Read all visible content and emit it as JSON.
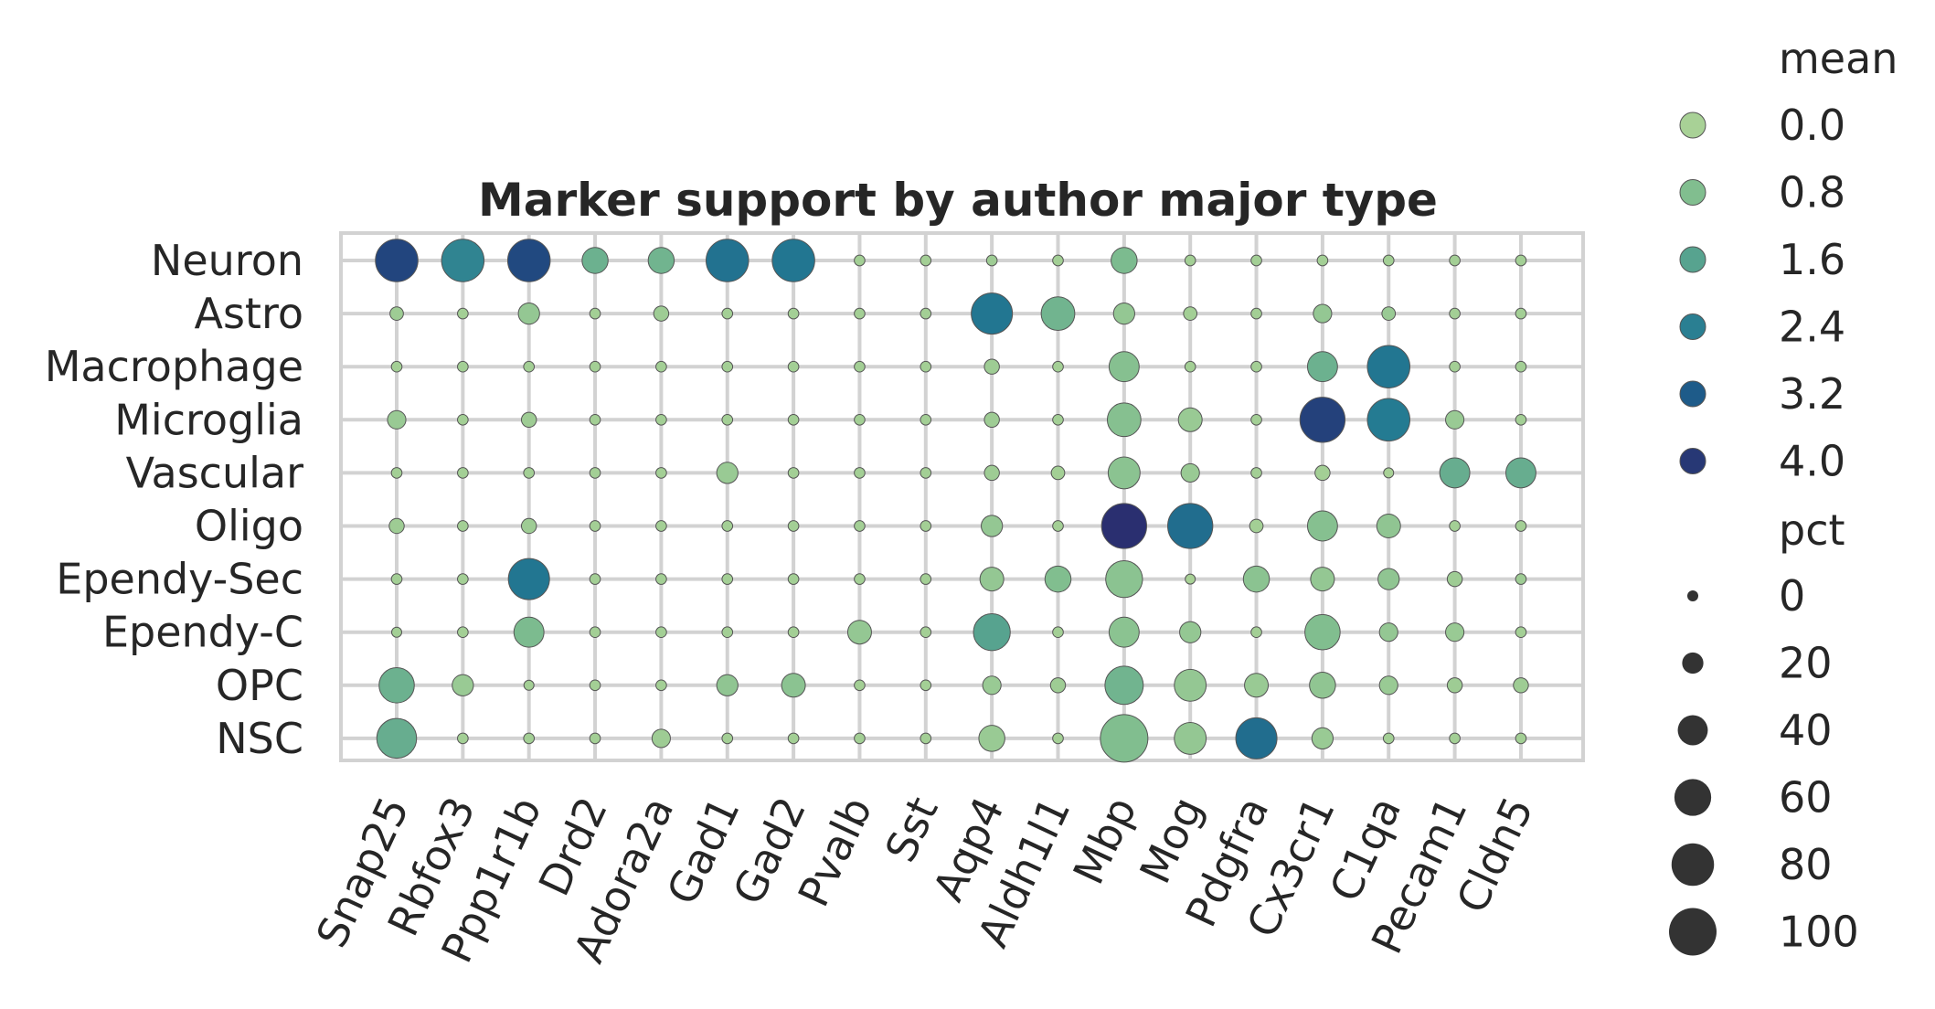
{
  "chart_data": {
    "type": "dotplot",
    "title": "Marker support by author major type",
    "xlabel": "",
    "ylabel": "",
    "rows": [
      "Neuron",
      "Astro",
      "Macrophage",
      "Microglia",
      "Vascular",
      "Oligo",
      "Ependy-Sec",
      "Ependy-C",
      "OPC",
      "NSC"
    ],
    "columns": [
      "Snap25",
      "Rbfox3",
      "Ppp1r1b",
      "Drd2",
      "Adora2a",
      "Gad1",
      "Gad2",
      "Pvalb",
      "Sst",
      "Aqp4",
      "Aldh1l1",
      "Mbp",
      "Mog",
      "Pdgfra",
      "Cx3cr1",
      "C1qa",
      "Pecam1",
      "Cldn5"
    ],
    "mean": [
      [
        3.7,
        2.3,
        3.6,
        1.2,
        1.1,
        2.7,
        2.6,
        0.1,
        0.1,
        0.2,
        0.1,
        0.9,
        0.1,
        0.1,
        0.1,
        0.1,
        0.1,
        0.1
      ],
      [
        0.2,
        0.1,
        0.4,
        0.1,
        0.2,
        0.1,
        0.1,
        0.1,
        0.1,
        2.6,
        1.1,
        0.4,
        0.1,
        0.1,
        0.4,
        0.3,
        0.1,
        0.1
      ],
      [
        0.1,
        0.1,
        0.1,
        0.1,
        0.1,
        0.1,
        0.1,
        0.1,
        0.1,
        0.2,
        0.1,
        0.7,
        0.1,
        0.1,
        1.2,
        2.6,
        0.1,
        0.1
      ],
      [
        0.3,
        0.1,
        0.2,
        0.1,
        0.1,
        0.1,
        0.1,
        0.1,
        0.1,
        0.2,
        0.1,
        0.7,
        0.3,
        0.1,
        3.8,
        2.5,
        0.3,
        0.1
      ],
      [
        0.1,
        0.1,
        0.1,
        0.1,
        0.1,
        0.3,
        0.1,
        0.1,
        0.1,
        0.2,
        0.1,
        0.6,
        0.3,
        0.1,
        0.1,
        0.0,
        1.3,
        1.3
      ],
      [
        0.2,
        0.1,
        0.2,
        0.1,
        0.1,
        0.1,
        0.1,
        0.1,
        0.1,
        0.4,
        0.1,
        4.2,
        2.8,
        0.1,
        0.7,
        0.5,
        0.1,
        0.1
      ],
      [
        0.1,
        0.1,
        2.6,
        0.1,
        0.1,
        0.1,
        0.1,
        0.1,
        0.1,
        0.4,
        0.8,
        0.6,
        0.0,
        0.6,
        0.4,
        0.5,
        0.2,
        0.2
      ],
      [
        0.1,
        0.1,
        0.9,
        0.1,
        0.1,
        0.1,
        0.1,
        0.4,
        0.1,
        1.6,
        0.1,
        0.6,
        0.4,
        0.1,
        0.8,
        0.4,
        0.3,
        0.1
      ],
      [
        1.2,
        0.3,
        0.1,
        0.1,
        0.1,
        0.5,
        0.6,
        0.1,
        0.1,
        0.3,
        0.2,
        1.1,
        0.4,
        0.3,
        0.5,
        0.3,
        0.2,
        0.2
      ],
      [
        1.3,
        0.1,
        0.1,
        0.1,
        0.2,
        0.1,
        0.1,
        0.1,
        0.1,
        0.3,
        0.1,
        0.8,
        0.4,
        2.8,
        0.3,
        0.1,
        0.1,
        0.1
      ]
    ],
    "pct": [
      [
        80,
        80,
        80,
        30,
        30,
        80,
        80,
        5,
        5,
        5,
        5,
        30,
        5,
        5,
        5,
        5,
        5,
        5
      ],
      [
        8,
        5,
        20,
        5,
        10,
        5,
        5,
        5,
        5,
        75,
        50,
        20,
        8,
        5,
        15,
        8,
        5,
        5
      ],
      [
        5,
        5,
        5,
        5,
        5,
        5,
        5,
        5,
        5,
        10,
        5,
        40,
        5,
        5,
        40,
        80,
        5,
        5
      ],
      [
        15,
        5,
        10,
        5,
        5,
        5,
        5,
        5,
        5,
        10,
        5,
        50,
        25,
        5,
        90,
        80,
        15,
        5
      ],
      [
        5,
        5,
        5,
        5,
        5,
        20,
        5,
        5,
        5,
        10,
        8,
        45,
        15,
        5,
        10,
        2,
        40,
        40
      ],
      [
        10,
        5,
        10,
        5,
        5,
        5,
        5,
        5,
        5,
        20,
        5,
        90,
        90,
        8,
        40,
        25,
        5,
        5
      ],
      [
        5,
        5,
        75,
        5,
        5,
        5,
        5,
        5,
        5,
        25,
        30,
        60,
        2,
        30,
        25,
        20,
        10,
        5
      ],
      [
        2,
        5,
        40,
        5,
        5,
        5,
        5,
        25,
        5,
        60,
        5,
        40,
        20,
        5,
        55,
        15,
        15,
        5
      ],
      [
        55,
        20,
        2,
        5,
        5,
        20,
        25,
        5,
        5,
        15,
        10,
        65,
        45,
        25,
        30,
        15,
        10,
        10
      ],
      [
        70,
        5,
        5,
        5,
        15,
        5,
        5,
        5,
        5,
        30,
        5,
        100,
        45,
        75,
        20,
        5,
        5,
        5
      ]
    ],
    "colorbar": {
      "name": "mean",
      "ticks": [
        "0.0",
        "0.8",
        "1.6",
        "2.4",
        "3.2",
        "4.0"
      ],
      "min": 0,
      "max": 4.2
    },
    "sizebar": {
      "name": "pct",
      "ticks": [
        "0",
        "20",
        "40",
        "60",
        "80",
        "100"
      ],
      "min": 0,
      "max": 100
    },
    "palette": [
      "#a8d196",
      "#7fbd8f",
      "#53a08f",
      "#237a92",
      "#1d5487",
      "#2a2f70"
    ],
    "grid": true,
    "legend_position": "right"
  }
}
